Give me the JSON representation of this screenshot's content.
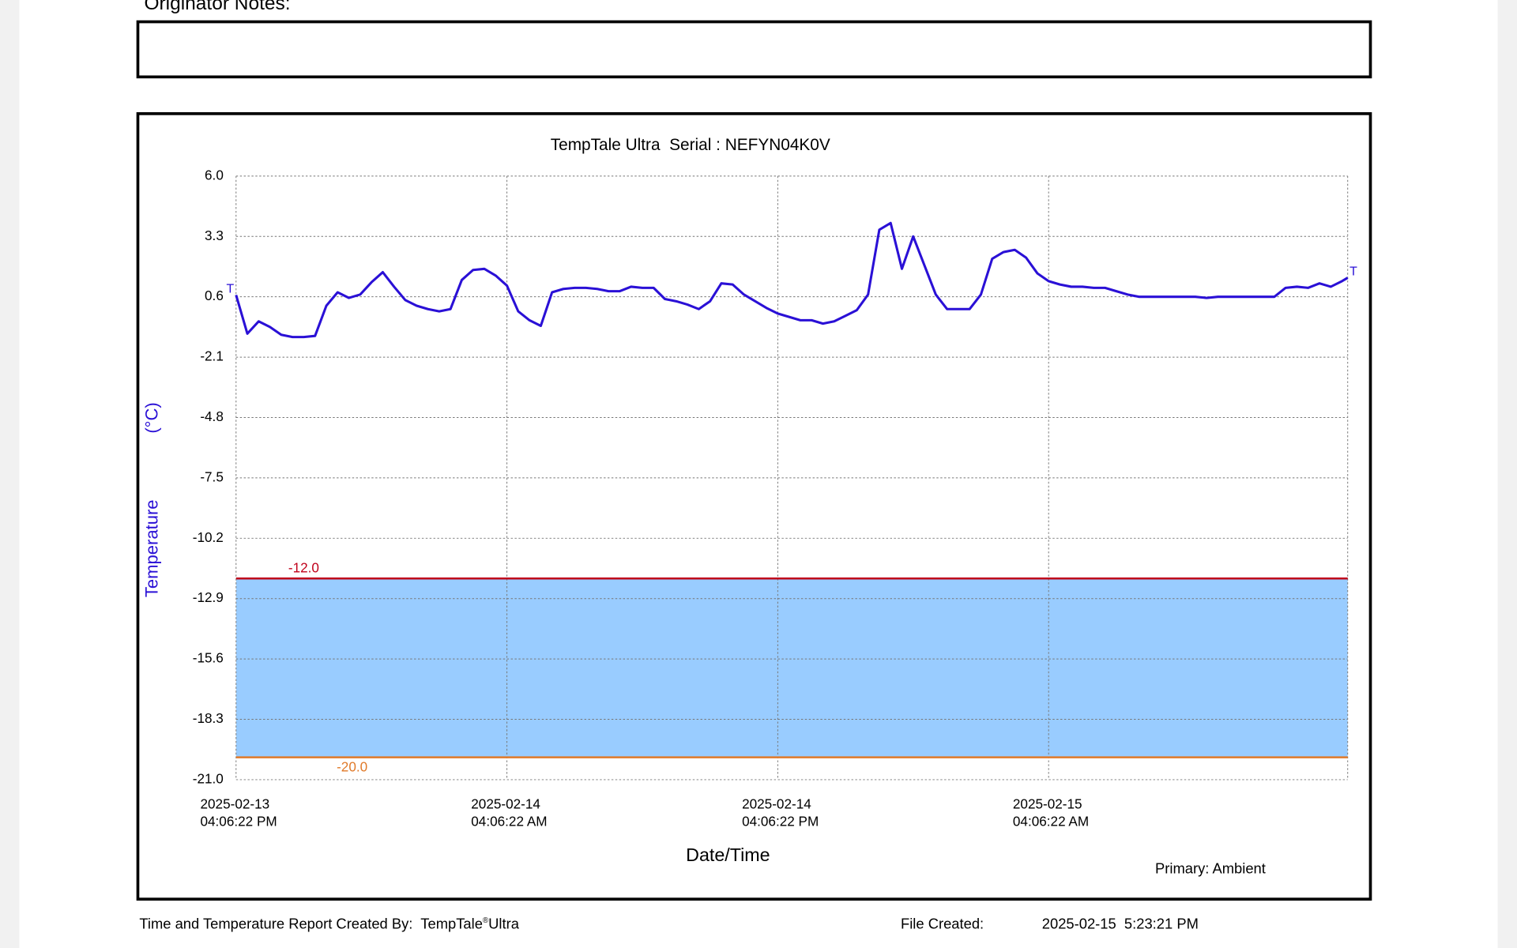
{
  "header": {
    "notes_label": "Originator Notes:"
  },
  "chart_data": {
    "type": "line",
    "title": "TempTale Ultra  Serial : NEFYN04K0V",
    "y_label": [
      "Temperature",
      "(°C)"
    ],
    "x_label": "Date/Time",
    "note": "Primary: Ambient",
    "color": "#2a10d6",
    "grid": true,
    "start_marker": "T",
    "end_marker": "T",
    "x": [
      "2025-02-13T16:06:22",
      "2025-02-13T16:36:22",
      "2025-02-13T17:06:22",
      "2025-02-13T17:36:22",
      "2025-02-13T18:06:22",
      "2025-02-13T18:36:22",
      "2025-02-13T19:06:22",
      "2025-02-13T19:36:22",
      "2025-02-13T20:06:22",
      "2025-02-13T20:36:22",
      "2025-02-13T21:06:22",
      "2025-02-13T21:36:22",
      "2025-02-13T22:06:22",
      "2025-02-13T22:36:22",
      "2025-02-13T23:06:22",
      "2025-02-13T23:36:22",
      "2025-02-14T00:06:22",
      "2025-02-14T00:36:22",
      "2025-02-14T01:06:22",
      "2025-02-14T01:36:22",
      "2025-02-14T02:06:22",
      "2025-02-14T02:36:22",
      "2025-02-14T03:06:22",
      "2025-02-14T03:36:22",
      "2025-02-14T04:06:22",
      "2025-02-14T04:36:22",
      "2025-02-14T05:06:22",
      "2025-02-14T05:36:22",
      "2025-02-14T06:06:22",
      "2025-02-14T06:36:22",
      "2025-02-14T07:06:22",
      "2025-02-14T07:36:22",
      "2025-02-14T08:06:22",
      "2025-02-14T08:36:22",
      "2025-02-14T09:06:22",
      "2025-02-14T09:36:22",
      "2025-02-14T10:06:22",
      "2025-02-14T10:36:22",
      "2025-02-14T11:06:22",
      "2025-02-14T11:36:22",
      "2025-02-14T12:06:22",
      "2025-02-14T12:36:22",
      "2025-02-14T13:06:22",
      "2025-02-14T13:36:22",
      "2025-02-14T14:06:22",
      "2025-02-14T14:36:22",
      "2025-02-14T15:06:22",
      "2025-02-14T15:36:22",
      "2025-02-14T16:06:22",
      "2025-02-14T16:36:22",
      "2025-02-14T17:06:22",
      "2025-02-14T17:36:22",
      "2025-02-14T18:06:22",
      "2025-02-14T18:36:22",
      "2025-02-14T19:06:22",
      "2025-02-14T19:36:22",
      "2025-02-14T20:06:22",
      "2025-02-14T20:36:22",
      "2025-02-14T21:06:22",
      "2025-02-14T21:36:22",
      "2025-02-14T22:06:22",
      "2025-02-14T22:36:22",
      "2025-02-14T23:06:22",
      "2025-02-14T23:36:22",
      "2025-02-15T00:06:22",
      "2025-02-15T00:36:22",
      "2025-02-15T01:06:22",
      "2025-02-15T01:36:22",
      "2025-02-15T02:06:22",
      "2025-02-15T02:36:22",
      "2025-02-15T03:06:22",
      "2025-02-15T03:36:22",
      "2025-02-15T04:06:22",
      "2025-02-15T04:36:22",
      "2025-02-15T05:06:22",
      "2025-02-15T05:36:22",
      "2025-02-15T06:06:22",
      "2025-02-15T06:36:22",
      "2025-02-15T07:06:22",
      "2025-02-15T07:36:22",
      "2025-02-15T08:06:22",
      "2025-02-15T08:36:22",
      "2025-02-15T09:06:22",
      "2025-02-15T09:36:22",
      "2025-02-15T10:06:22",
      "2025-02-15T10:36:22",
      "2025-02-15T11:06:22",
      "2025-02-15T11:36:22",
      "2025-02-15T12:06:22",
      "2025-02-15T12:36:22",
      "2025-02-15T13:06:22",
      "2025-02-15T13:36:22",
      "2025-02-15T14:06:22",
      "2025-02-15T14:36:22",
      "2025-02-15T15:06:22",
      "2025-02-15T15:36:22",
      "2025-02-15T16:06:22",
      "2025-02-15T16:36:22",
      "2025-02-15T17:06:22",
      "2025-02-15T17:21:22"
    ],
    "values": [
      0.68,
      -1.05,
      -0.5,
      -0.75,
      -1.1,
      -1.2,
      -1.2,
      -1.15,
      0.2,
      0.8,
      0.55,
      0.7,
      1.25,
      1.7,
      1.05,
      0.45,
      0.2,
      0.05,
      -0.05,
      0.05,
      1.35,
      1.8,
      1.85,
      1.55,
      1.1,
      -0.05,
      -0.45,
      -0.7,
      0.8,
      0.95,
      1.0,
      1.0,
      0.95,
      0.85,
      0.85,
      1.05,
      1.0,
      1.0,
      0.5,
      0.4,
      0.25,
      0.05,
      0.4,
      1.2,
      1.15,
      0.7,
      0.4,
      0.1,
      -0.15,
      -0.3,
      -0.45,
      -0.45,
      -0.6,
      -0.5,
      -0.25,
      0.0,
      0.7,
      3.6,
      3.9,
      1.85,
      3.3,
      2.0,
      0.7,
      0.05,
      0.05,
      0.05,
      0.7,
      2.3,
      2.6,
      2.7,
      2.35,
      1.65,
      1.3,
      1.15,
      1.05,
      1.05,
      1.0,
      1.0,
      0.85,
      0.7,
      0.6,
      0.6,
      0.6,
      0.6,
      0.6,
      0.6,
      0.55,
      0.6,
      0.6,
      0.6,
      0.6,
      0.6,
      0.6,
      1.0,
      1.05,
      1.0,
      1.2,
      1.05,
      1.3,
      1.45
    ],
    "xlim": [
      "2025-02-13T16:06:22",
      "2025-02-15T17:21:22"
    ],
    "xticks": [
      {
        "value": "2025-02-13T16:06:22",
        "label": "2025-02-13\n04:06:22 PM"
      },
      {
        "value": "2025-02-14T04:06:22",
        "label": "2025-02-14\n04:06:22 AM"
      },
      {
        "value": "2025-02-14T16:06:22",
        "label": "2025-02-14\n04:06:22 PM"
      },
      {
        "value": "2025-02-15T04:06:22",
        "label": "2025-02-15\n04:06:22 AM"
      }
    ],
    "ylim": [
      -21,
      6
    ],
    "yticks": [
      {
        "value": 6,
        "label": "6.0"
      },
      3.3,
      0.6,
      -2.1,
      -4.8,
      -7.5,
      -10.2,
      -12.9,
      -15.6,
      -18.3,
      {
        "value": -21,
        "label": "-21.0"
      }
    ],
    "thresholds": [
      {
        "value": -12,
        "label": "-12.0",
        "color": "#c0001a"
      },
      {
        "value": -20,
        "label": "-20.0",
        "color": "#e07a2a"
      }
    ],
    "band_color": "#99ccff"
  },
  "footer": {
    "created_by_label": "Time and Temperature Report Created By:",
    "product": "TempTale",
    "registered": "®",
    "product_suffix": "Ultra",
    "file_created_label": "File Created:",
    "file_created": "2025-02-15  5:23:21 PM"
  }
}
